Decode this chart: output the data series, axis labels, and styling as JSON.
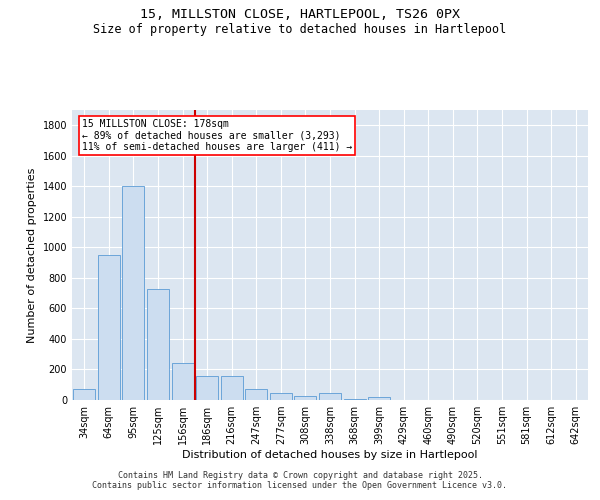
{
  "title_line1": "15, MILLSTON CLOSE, HARTLEPOOL, TS26 0PX",
  "title_line2": "Size of property relative to detached houses in Hartlepool",
  "xlabel": "Distribution of detached houses by size in Hartlepool",
  "ylabel": "Number of detached properties",
  "bar_color": "#ccddf0",
  "bar_edge_color": "#5b9bd5",
  "background_color": "#dce6f1",
  "annotation_text": "15 MILLSTON CLOSE: 178sqm\n← 89% of detached houses are smaller (3,293)\n11% of semi-detached houses are larger (411) →",
  "vline_color": "#cc0000",
  "categories": [
    "34sqm",
    "64sqm",
    "95sqm",
    "125sqm",
    "156sqm",
    "186sqm",
    "216sqm",
    "247sqm",
    "277sqm",
    "308sqm",
    "338sqm",
    "368sqm",
    "399sqm",
    "429sqm",
    "460sqm",
    "490sqm",
    "520sqm",
    "551sqm",
    "581sqm",
    "612sqm",
    "642sqm"
  ],
  "values": [
    75,
    950,
    1400,
    730,
    240,
    160,
    160,
    70,
    45,
    25,
    45,
    5,
    18,
    3,
    2,
    2,
    2,
    1,
    1,
    1,
    1
  ],
  "ylim": [
    0,
    1900
  ],
  "yticks": [
    0,
    200,
    400,
    600,
    800,
    1000,
    1200,
    1400,
    1600,
    1800
  ],
  "footer_line1": "Contains HM Land Registry data © Crown copyright and database right 2025.",
  "footer_line2": "Contains public sector information licensed under the Open Government Licence v3.0.",
  "title_fontsize": 9.5,
  "subtitle_fontsize": 8.5,
  "axis_label_fontsize": 8,
  "tick_fontsize": 7,
  "footer_fontsize": 6,
  "annot_fontsize": 7
}
